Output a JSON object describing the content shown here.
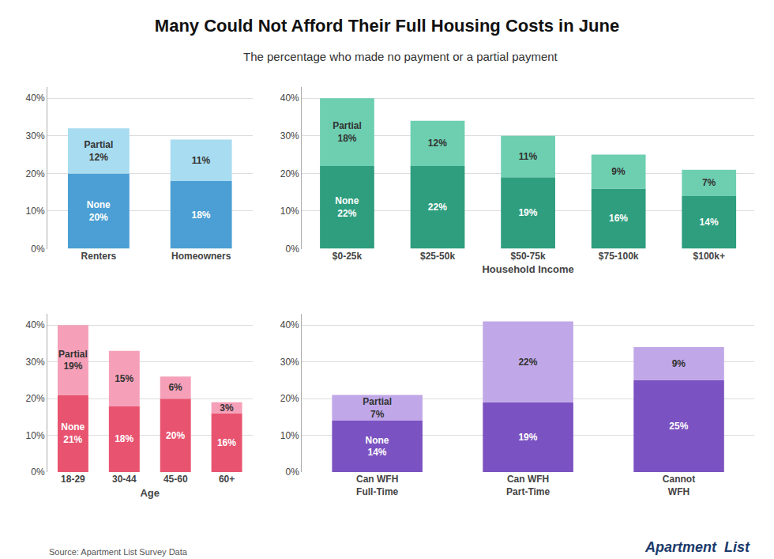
{
  "title": "Many Could Not Afford Their Full Housing Costs in June",
  "subtitle": "The percentage who made no payment or a partial payment",
  "annotations": [
    "Source: Apartment List Survey Data",
    "Apartment",
    "List"
  ],
  "chart_data": [
    {
      "type": "bar",
      "stacked": true,
      "data_labels": true,
      "grid": true,
      "categories": [
        "Renters",
        "Homeowners"
      ],
      "series": [
        {
          "name": "None",
          "color": "#4B9FD4",
          "values": [
            20,
            18
          ],
          "value_labels": [
            "None\n20%",
            "18%"
          ]
        },
        {
          "name": "Partial",
          "color": "#A8DCF0",
          "values": [
            12,
            11
          ],
          "value_labels": [
            "Partial\n12%",
            "11%"
          ]
        }
      ],
      "ylim": [
        0,
        43
      ],
      "yticks": [
        {
          "value": 0,
          "label": "0%"
        },
        {
          "value": 10,
          "label": "10%"
        },
        {
          "value": 20,
          "label": "20%"
        },
        {
          "value": 30,
          "label": "30%"
        },
        {
          "value": 40,
          "label": "40%"
        }
      ]
    },
    {
      "type": "bar",
      "stacked": true,
      "data_labels": true,
      "grid": true,
      "categories": [
        "$0-25k",
        "$25-50k",
        "$50-75k",
        "$75-100k",
        "$100k+"
      ],
      "xlabel": "Household Income",
      "series": [
        {
          "name": "None",
          "color": "#2E9E7E",
          "values": [
            22,
            22,
            19,
            16,
            14
          ],
          "value_labels": [
            "None\n22%",
            "22%",
            "19%",
            "16%",
            "14%"
          ]
        },
        {
          "name": "Partial",
          "color": "#6DCFB0",
          "values": [
            18,
            12,
            11,
            9,
            7
          ],
          "value_labels": [
            "Partial\n18%",
            "12%",
            "11%",
            "9%",
            "7%"
          ]
        }
      ],
      "ylim": [
        0,
        43
      ],
      "yticks": [
        {
          "value": 0,
          "label": "0%"
        },
        {
          "value": 10,
          "label": "10%"
        },
        {
          "value": 20,
          "label": "20%"
        },
        {
          "value": 30,
          "label": "30%"
        },
        {
          "value": 40,
          "label": "40%"
        }
      ]
    },
    {
      "type": "bar",
      "stacked": true,
      "data_labels": true,
      "grid": true,
      "categories": [
        "18-29",
        "30-44",
        "45-60",
        "60+"
      ],
      "xlabel": "Age",
      "series": [
        {
          "name": "None",
          "color": "#E85470",
          "values": [
            21,
            18,
            20,
            16
          ],
          "value_labels": [
            "None\n21%",
            "18%",
            "20%",
            "16%"
          ]
        },
        {
          "name": "Partial",
          "color": "#F5A0B8",
          "values": [
            19,
            15,
            6,
            3
          ],
          "value_labels": [
            "Partial\n19%",
            "15%",
            "6%",
            "3%"
          ]
        }
      ],
      "ylim": [
        0,
        43
      ],
      "yticks": [
        {
          "value": 0,
          "label": "0%"
        },
        {
          "value": 10,
          "label": "10%"
        },
        {
          "value": 20,
          "label": "20%"
        },
        {
          "value": 30,
          "label": "30%"
        },
        {
          "value": 40,
          "label": "40%"
        }
      ]
    },
    {
      "type": "bar",
      "stacked": true,
      "data_labels": true,
      "grid": true,
      "categories": [
        "Can WFH\nFull-Time",
        "Can WFH\nPart-Time",
        "Cannot\nWFH"
      ],
      "series": [
        {
          "name": "None",
          "color": "#7B52C1",
          "values": [
            14,
            19,
            25
          ],
          "value_labels": [
            "None\n14%",
            "19%",
            "25%"
          ]
        },
        {
          "name": "Partial",
          "color": "#C0A8E8",
          "values": [
            7,
            22,
            9
          ],
          "value_labels": [
            "Partial\n7%",
            "22%",
            "9%"
          ]
        }
      ],
      "ylim": [
        0,
        43
      ],
      "yticks": [
        {
          "value": 0,
          "label": "0%"
        },
        {
          "value": 10,
          "label": "10%"
        },
        {
          "value": 20,
          "label": "20%"
        },
        {
          "value": 30,
          "label": "30%"
        },
        {
          "value": 40,
          "label": "40%"
        }
      ]
    }
  ]
}
